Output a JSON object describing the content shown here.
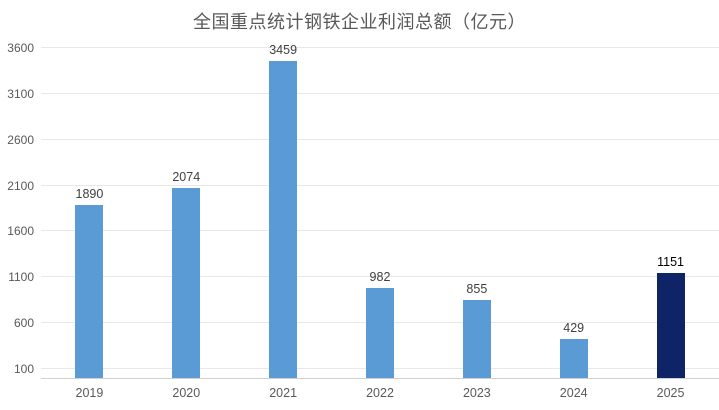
{
  "chart_data": {
    "type": "bar",
    "title": "全国重点统计钢铁企业利润总额（亿元）",
    "categories": [
      "2019",
      "2020",
      "2021",
      "2022",
      "2023",
      "2024",
      "2025"
    ],
    "values": [
      1890,
      2074,
      3459,
      982,
      855,
      429,
      1151
    ],
    "bar_colors": [
      "#5B9BD5",
      "#5B9BD5",
      "#5B9BD5",
      "#5B9BD5",
      "#5B9BD5",
      "#5B9BD5",
      "#0E2466"
    ],
    "value_label_colors": [
      "#404040",
      "#404040",
      "#404040",
      "#404040",
      "#404040",
      "#404040",
      "#000000"
    ],
    "xlabel": "",
    "ylabel": "",
    "y_ticks": [
      100,
      600,
      1100,
      1600,
      2100,
      2600,
      3100,
      3600
    ],
    "ylim": [
      0,
      3600
    ],
    "grid": true,
    "legend": "none",
    "colors": {
      "bar_default": "#5B9BD5",
      "bar_highlight": "#0E2466",
      "gridline": "#e8e8e8",
      "axis_line": "#d0d0d0",
      "title_text": "#595959",
      "tick_text": "#595959",
      "value_text": "#404040"
    }
  }
}
